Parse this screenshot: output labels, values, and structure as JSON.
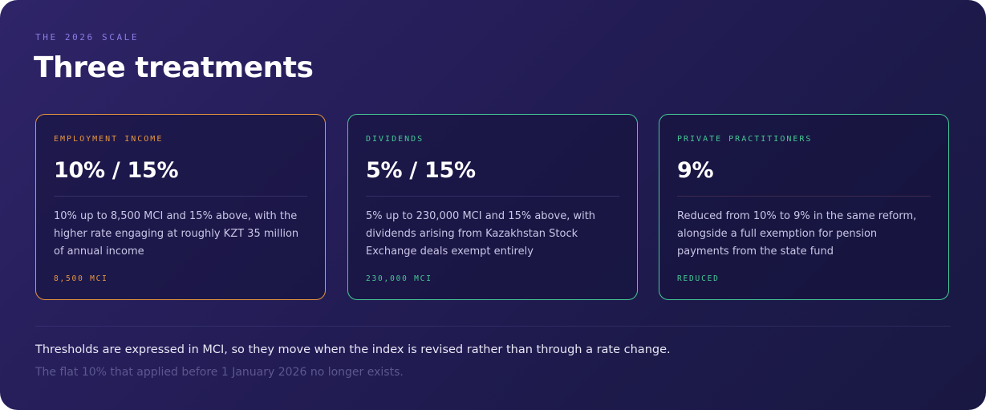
{
  "header": {
    "eyebrow": "THE 2026 SCALE",
    "title": "Three treatments"
  },
  "cards": [
    {
      "label": "EMPLOYMENT INCOME",
      "rate": "10% / 15%",
      "description": "10% up to 8,500 MCI and 15% above, with the higher rate engaging at roughly KZT 35 million of annual income",
      "tag": "8,500 MCI",
      "accent": "#e7963f"
    },
    {
      "label": "DIVIDENDS",
      "rate": "5% / 15%",
      "description": "5% up to 230,000 MCI and 15% above, with dividends arising from Kazakhstan Stock Exchange deals exempt entirely",
      "tag": "230,000 MCI",
      "accent": "#46c996"
    },
    {
      "label": "PRIVATE PRACTITIONERS",
      "rate": "9%",
      "description": "Reduced from 10% to 9% in the same reform, alongside a full exemption for pension payments from the state fund",
      "tag": "REDUCED",
      "accent": "#46c996"
    }
  ],
  "footer": {
    "note": "Thresholds are expressed in MCI, so they move when the index is revised rather than through a rate change.",
    "subnote": "The flat 10% that applied before 1 January 2026 no longer exists."
  }
}
